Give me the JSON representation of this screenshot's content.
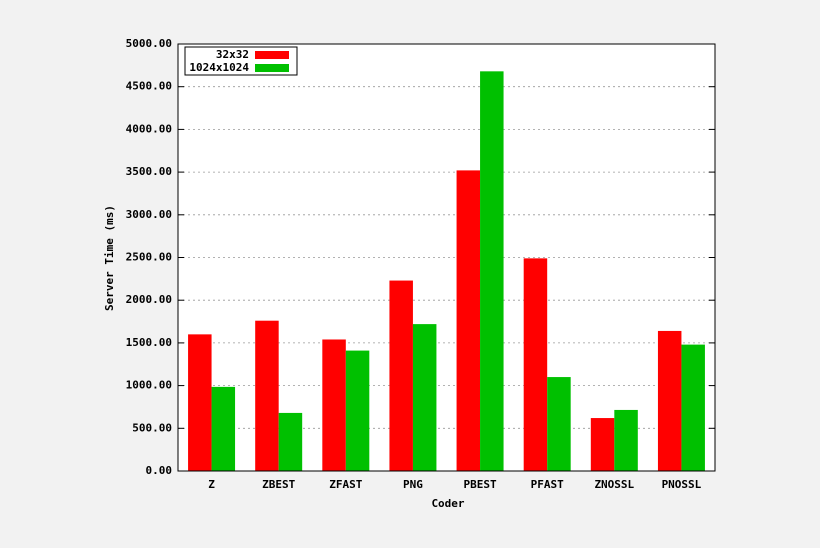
{
  "chart_data": {
    "type": "bar",
    "x_label": "Coder",
    "y_label": "Server Time (ms)",
    "categories": [
      "Z",
      "ZBEST",
      "ZFAST",
      "PNG",
      "PBEST",
      "PFAST",
      "ZNOSSL",
      "PNOSSL"
    ],
    "series": [
      {
        "name": "32x32",
        "color": "#ff0000",
        "values": [
          1600,
          1760,
          1540,
          2230,
          3520,
          2490,
          620,
          1640
        ]
      },
      {
        "name": "1024x1024",
        "color": "#00c000",
        "values": [
          985,
          680,
          1410,
          1720,
          4680,
          1100,
          715,
          1480
        ]
      }
    ],
    "ylim": [
      0,
      5000
    ],
    "yticks": [
      {
        "value": 0,
        "label": "0.00"
      },
      {
        "value": 500,
        "label": "500.00"
      },
      {
        "value": 1000,
        "label": "1000.00"
      },
      {
        "value": 1500,
        "label": "1500.00"
      },
      {
        "value": 2000,
        "label": "2000.00"
      },
      {
        "value": 2500,
        "label": "2500.00"
      },
      {
        "value": 3000,
        "label": "3000.00"
      },
      {
        "value": 3500,
        "label": "3500.00"
      },
      {
        "value": 4000,
        "label": "4000.00"
      },
      {
        "value": 4500,
        "label": "4500.00"
      },
      {
        "value": 5000,
        "label": "5000.00"
      }
    ],
    "grid": true,
    "legend": "top-left"
  }
}
